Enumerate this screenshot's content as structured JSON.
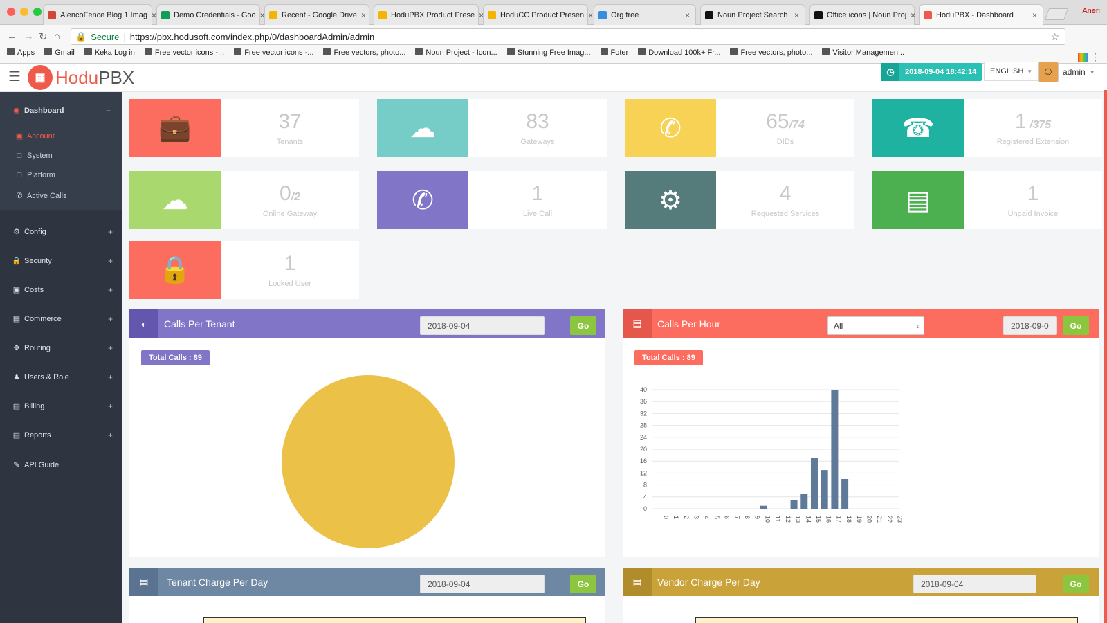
{
  "browser": {
    "tabs": [
      {
        "title": "AlencoFence Blog 1 Imag",
        "icon_color": "#d44638"
      },
      {
        "title": "Demo Credentials - Goo",
        "icon_color": "#0f9d58"
      },
      {
        "title": "Recent - Google Drive",
        "icon_color": "#f4b400"
      },
      {
        "title": "HoduPBX Product Prese",
        "icon_color": "#f4b400"
      },
      {
        "title": "HoduCC Product Presen",
        "icon_color": "#f4b400"
      },
      {
        "title": "Org tree",
        "icon_color": "#3a8dde"
      },
      {
        "title": "Noun Project Search",
        "icon_color": "#111111"
      },
      {
        "title": "Office icons | Noun Proj",
        "icon_color": "#111111"
      },
      {
        "title": "HoduPBX - Dashboard",
        "icon_color": "#ef5b4b"
      }
    ],
    "profile": "Aneri",
    "secure_label": "Secure",
    "url": "https://pbx.hodusoft.com/index.php/0/dashboardAdmin/admin",
    "bookmarks": [
      "Apps",
      "Gmail",
      "Keka Log in",
      "Free vector icons -...",
      "Free vector icons -...",
      "Free vectors, photo...",
      "Noun Project - Icon...",
      "Stunning Free Imag...",
      "Foter",
      "Download 100k+ Fr...",
      "Free vectors, photo...",
      "Visitor Managemen..."
    ]
  },
  "header": {
    "logo_hodu": "Hodu",
    "logo_pbx": "PBX",
    "datetime": "2018-09-04 18:42:14",
    "language": "ENGLISH",
    "user": "admin"
  },
  "sidebar": {
    "dashboard": "Dashboard",
    "sub": [
      "Account",
      "System",
      "Platform",
      "Active Calls"
    ],
    "items": [
      "Config",
      "Security",
      "Costs",
      "Commerce",
      "Routing",
      "Users & Role",
      "Billing",
      "Reports",
      "API Guide"
    ]
  },
  "stats": [
    {
      "num": "37",
      "suffix": "",
      "label": "Tenants",
      "color": "#fc6d5f",
      "icon": "briefcase-icon"
    },
    {
      "num": "83",
      "suffix": "",
      "label": "Gateways",
      "color": "#76cdc7",
      "icon": "cloud-upload-icon"
    },
    {
      "num": "65",
      "suffix": "/74",
      "label": "DIDs",
      "color": "#f8d254",
      "icon": "phone-icon"
    },
    {
      "num": "1",
      "suffix": " /375",
      "label": "Registered Extension",
      "color": "#20b2a0",
      "icon": "telephone-icon"
    },
    {
      "num": "0",
      "suffix": "/2",
      "label": "Online Gateway",
      "color": "#a9d86e",
      "icon": "cloud-upload-icon"
    },
    {
      "num": "1",
      "suffix": "",
      "label": "Live Call",
      "color": "#8175c7",
      "icon": "phone-icon"
    },
    {
      "num": "4",
      "suffix": "",
      "label": "Requested Services",
      "color": "#557c7b",
      "icon": "gears-icon"
    },
    {
      "num": "1",
      "suffix": "",
      "label": "Unpaid Invoice",
      "color": "#4caf50",
      "icon": "money-icon"
    },
    {
      "num": "1",
      "suffix": "",
      "label": "Locked User",
      "color": "#fc6d5f",
      "icon": "lock-icon"
    }
  ],
  "panels": {
    "calls_per_tenant": {
      "title": "Calls Per Tenant",
      "date": "2018-09-04",
      "go": "Go",
      "badge": "Total Calls : 89"
    },
    "calls_per_hour": {
      "title": "Calls Per Hour",
      "select": "All",
      "date": "2018-09-0",
      "go": "Go",
      "badge": "Total Calls : 89"
    },
    "tenant_charge": {
      "title": "Tenant Charge Per Day",
      "date": "2018-09-04",
      "go": "Go"
    },
    "vendor_charge": {
      "title": "Vendor Charge Per Day",
      "date": "2018-09-04",
      "go": "Go"
    }
  },
  "colors": {
    "pie": "#ecc148",
    "bar": "#5f7a99",
    "purple": "#8175c7",
    "red": "#fc6d5f",
    "slate": "#6e87a2",
    "gold": "#c9a33a"
  },
  "chart_data": [
    {
      "type": "pie",
      "title": "Calls Per Tenant",
      "labels": [
        ""
      ],
      "values": [
        89
      ]
    },
    {
      "type": "bar",
      "title": "Calls Per Hour",
      "categories": [
        "0",
        "1",
        "2",
        "3",
        "4",
        "5",
        "6",
        "7",
        "8",
        "9",
        "10",
        "11",
        "12",
        "13",
        "14",
        "15",
        "16",
        "17",
        "18",
        "19",
        "20",
        "21",
        "22",
        "23"
      ],
      "values": [
        0,
        0,
        0,
        0,
        0,
        0,
        0,
        0,
        0,
        0,
        1,
        0,
        0,
        3,
        5,
        17,
        13,
        40,
        10,
        0,
        0,
        0,
        0,
        0
      ],
      "yticks": [
        0,
        4,
        8,
        12,
        16,
        20,
        24,
        28,
        32,
        36,
        40
      ],
      "ylim": [
        0,
        40
      ],
      "grid": true
    }
  ]
}
